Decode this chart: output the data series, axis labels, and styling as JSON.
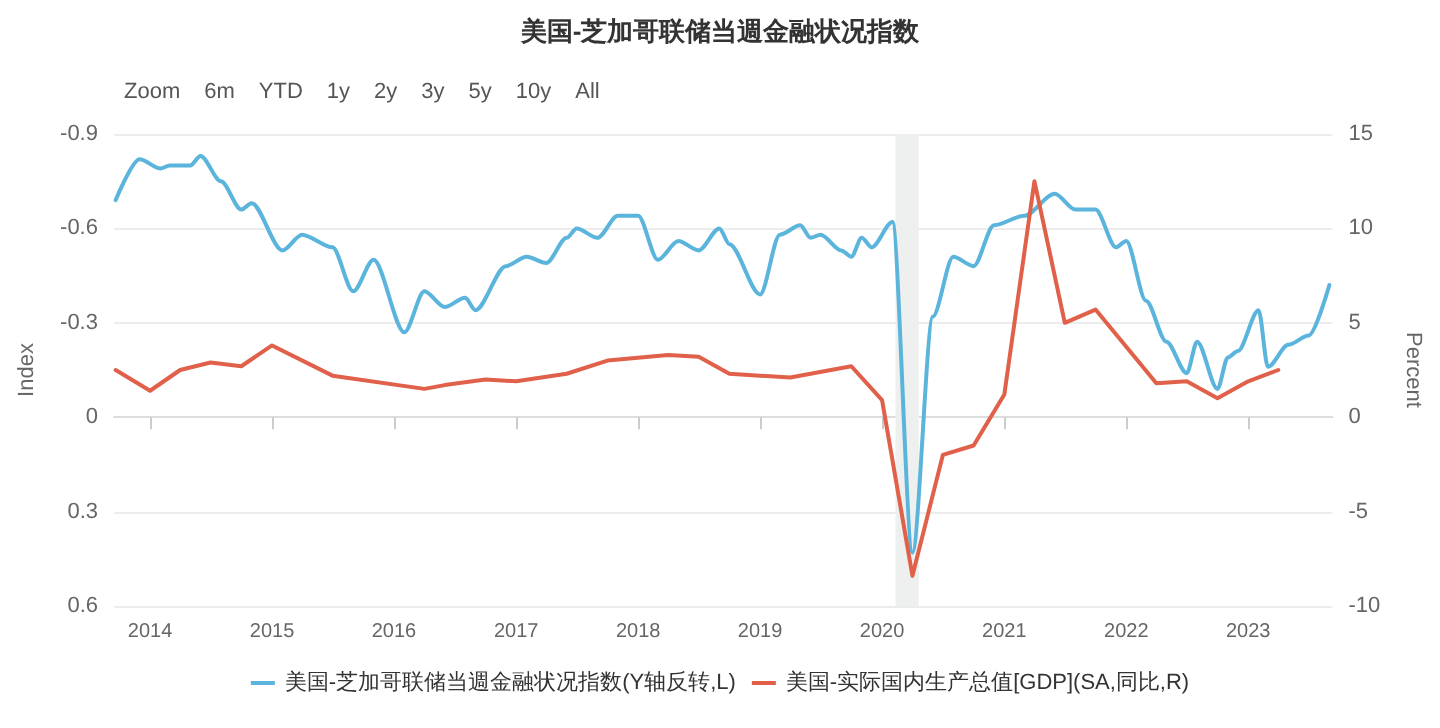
{
  "chart_data": {
    "type": "line",
    "title": "美国-芝加哥联储当週金融状况指数",
    "annotations": [
      "Zoom",
      "6m",
      "YTD",
      "1y",
      "2y",
      "3y",
      "5y",
      "10y",
      "All"
    ],
    "ylabel": "Index",
    "y2label": "Percent",
    "xlim": [
      "2013-09-15",
      "2023-09-10"
    ],
    "xticks": [
      "2014",
      "2015",
      "2016",
      "2017",
      "2018",
      "2019",
      "2020",
      "2021",
      "2022",
      "2023"
    ],
    "ylim": [
      0.6,
      -0.9
    ],
    "yticks": [
      -0.9,
      -0.6,
      -0.3,
      0,
      0.3,
      0.6
    ],
    "y2lim": [
      -10,
      15
    ],
    "y2ticks": [
      -10,
      -5,
      0,
      5,
      10,
      15
    ],
    "grid": "y",
    "legend": "bottom",
    "marker": "none",
    "line_style": "solid",
    "bands": [
      {
        "axis": "x",
        "from": "2020-02-10",
        "to": "2020-04-20",
        "color": "#eef0f0"
      }
    ],
    "series": [
      {
        "name": "美国-芝加哥联储当週金融状况指数(Y轴反转,L)",
        "color": "#5ab4dc",
        "x": [
          "2013-09-20",
          "2013-12",
          "2014-02",
          "2014-03",
          "2014-05",
          "2014-06",
          "2014-08",
          "2014-10",
          "2014-11",
          "2015-02",
          "2015-04",
          "2015-07",
          "2015-09",
          "2015-11",
          "2016-02",
          "2016-04",
          "2016-06",
          "2016-08",
          "2016-09",
          "2016-12",
          "2017-02",
          "2017-04",
          "2017-06",
          "2017-07",
          "2017-09",
          "2017-11",
          "2018-01",
          "2018-03",
          "2018-05",
          "2018-07",
          "2018-09",
          "2018-10",
          "2019-01",
          "2019-03",
          "2019-05",
          "2019-06",
          "2019-07",
          "2019-09",
          "2019-10",
          "2019-11",
          "2019-12",
          "2020-02",
          "2020-04",
          "2020-06",
          "2020-08",
          "2020-10",
          "2020-12",
          "2021-03",
          "2021-06",
          "2021-08",
          "2021-10",
          "2021-12",
          "2022-01",
          "2022-03",
          "2022-05",
          "2022-07",
          "2022-08",
          "2022-10",
          "2022-11",
          "2022-12",
          "2023-02",
          "2023-03",
          "2023-05",
          "2023-07",
          "2023-09"
        ],
        "values": [
          -0.69,
          -0.82,
          -0.79,
          -0.8,
          -0.8,
          -0.83,
          -0.75,
          -0.66,
          -0.68,
          -0.53,
          -0.58,
          -0.54,
          -0.4,
          -0.5,
          -0.27,
          -0.4,
          -0.35,
          -0.38,
          -0.34,
          -0.48,
          -0.51,
          -0.49,
          -0.57,
          -0.6,
          -0.57,
          -0.64,
          -0.64,
          -0.5,
          -0.56,
          -0.53,
          -0.6,
          -0.55,
          -0.39,
          -0.58,
          -0.61,
          -0.57,
          -0.58,
          -0.53,
          -0.51,
          -0.57,
          -0.54,
          -0.62,
          0.43,
          -0.32,
          -0.51,
          -0.48,
          -0.61,
          -0.64,
          -0.71,
          -0.66,
          -0.66,
          -0.54,
          -0.56,
          -0.37,
          -0.24,
          -0.14,
          -0.24,
          -0.09,
          -0.19,
          -0.21,
          -0.34,
          -0.16,
          -0.23,
          -0.26,
          -0.42
        ]
      },
      {
        "name": "美国-实际国内生产总值[GDP](SA,同比,R)",
        "color": "#e0604a",
        "axis": "y2",
        "x": [
          "2013-09-20",
          "2014-01",
          "2014-04",
          "2014-07",
          "2014-10",
          "2015-01",
          "2015-07",
          "2016-04",
          "2016-06",
          "2016-10",
          "2017-01",
          "2017-06",
          "2017-10",
          "2018-04",
          "2018-07",
          "2018-10",
          "2019-01",
          "2019-04",
          "2019-10",
          "2020-01",
          "2020-04",
          "2020-07",
          "2020-10",
          "2021-01",
          "2021-04",
          "2021-07",
          "2021-10",
          "2022-04",
          "2022-07",
          "2022-10",
          "2023-01",
          "2023-04"
        ],
        "values": [
          2.5,
          1.4,
          2.5,
          2.9,
          2.7,
          3.8,
          2.2,
          1.5,
          1.7,
          2.0,
          1.9,
          2.3,
          3.0,
          3.3,
          3.2,
          2.3,
          2.2,
          2.1,
          2.7,
          0.9,
          -8.4,
          -2.0,
          -1.5,
          1.2,
          12.5,
          5.0,
          5.7,
          1.8,
          1.9,
          1.0,
          1.9,
          2.5
        ]
      }
    ]
  }
}
